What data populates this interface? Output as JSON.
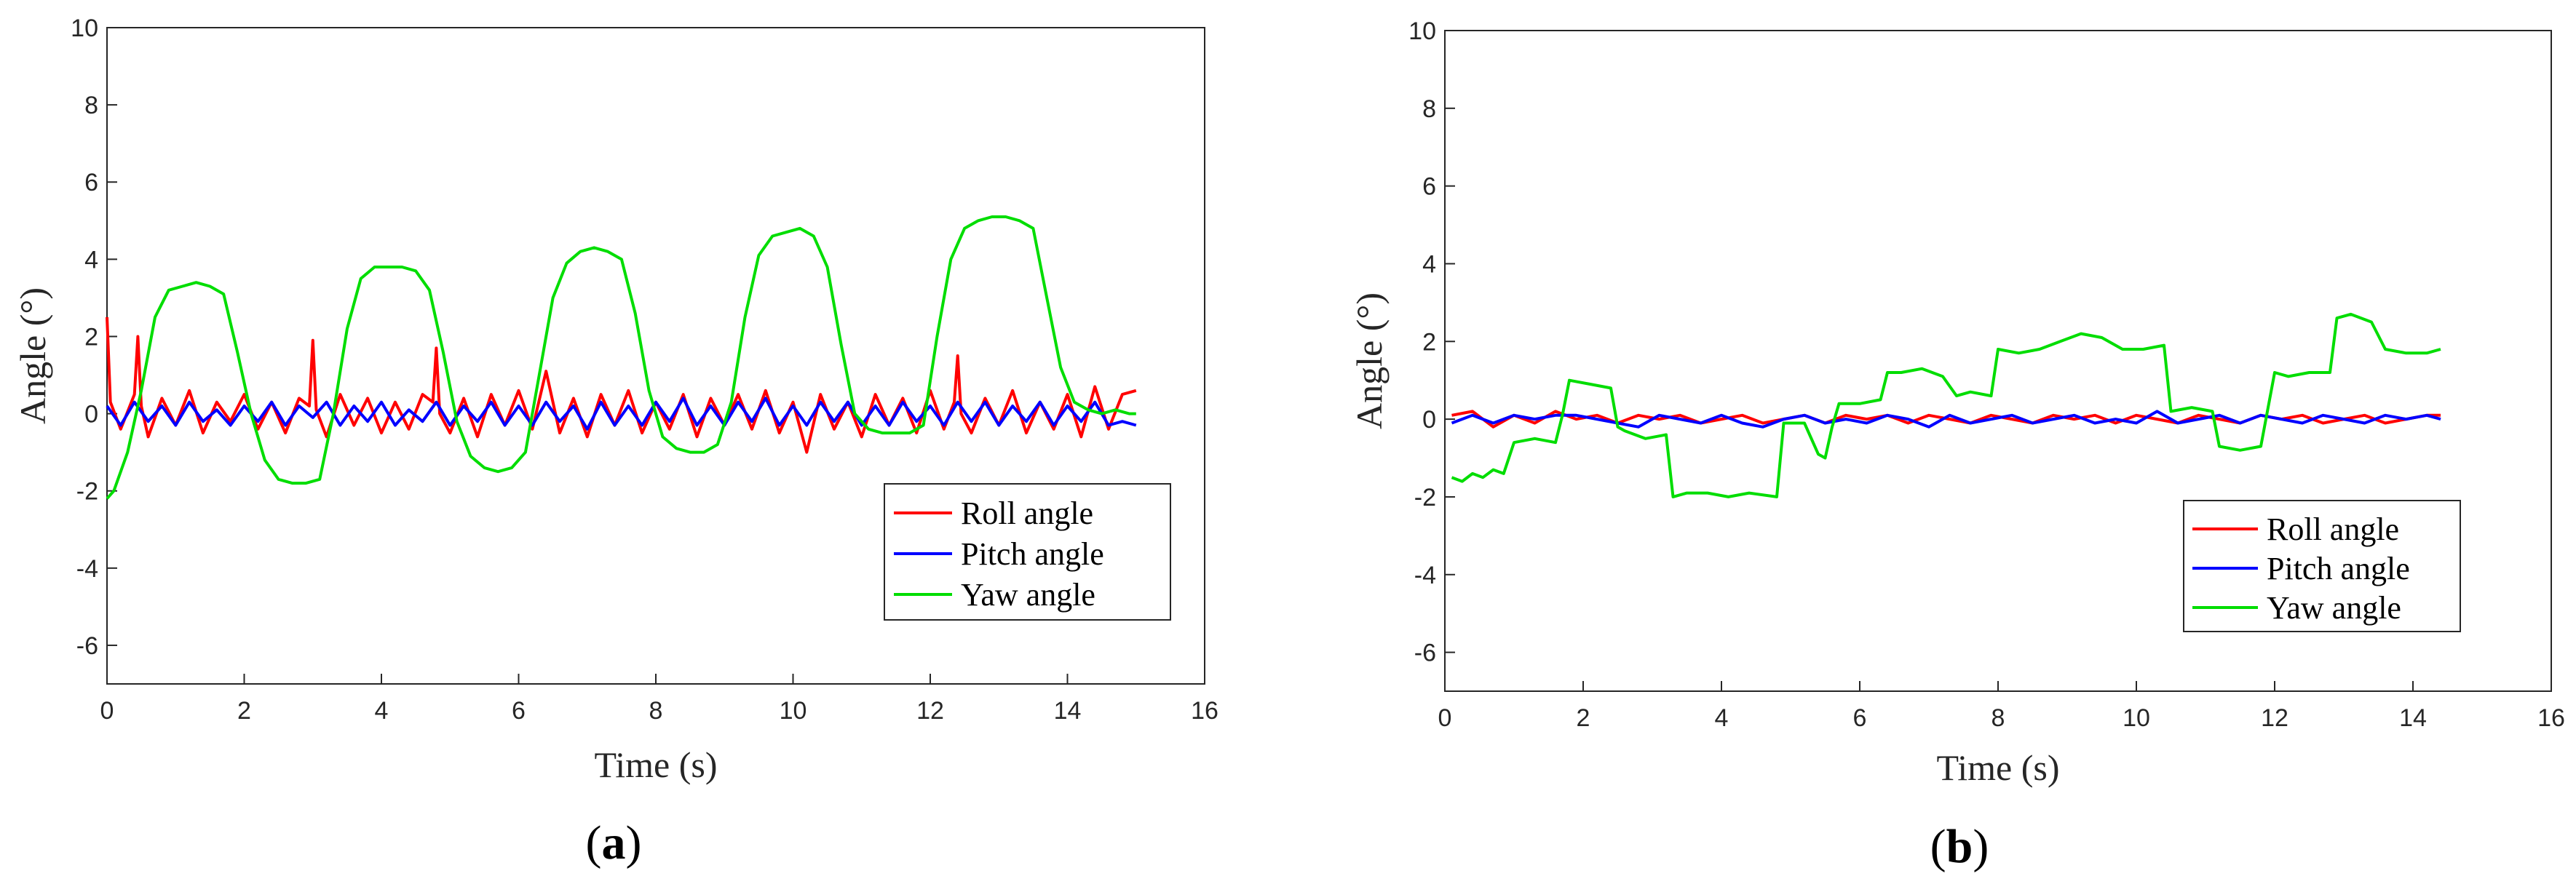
{
  "figure_labels": {
    "a": {
      "open": "(",
      "letter": "a",
      "close": ")"
    },
    "b": {
      "open": "(",
      "letter": "b",
      "close": ")"
    }
  },
  "colors": {
    "roll": "#ff0000",
    "pitch": "#0000ff",
    "yaw": "#00dd00",
    "axis": "#262626"
  },
  "chart_data": [
    {
      "type": "line",
      "panel": "a",
      "xlabel": "Time (s)",
      "ylabel": "Angle (°)",
      "xlim": [
        0,
        16
      ],
      "ylim": [
        -7,
        10
      ],
      "xticks": [
        0,
        2,
        4,
        6,
        8,
        10,
        12,
        14,
        16
      ],
      "yticks": [
        -6,
        -4,
        -2,
        0,
        2,
        4,
        6,
        8,
        10
      ],
      "legend": {
        "position": "lower-right",
        "entries": [
          "Roll angle",
          "Pitch angle",
          "Yaw angle"
        ]
      },
      "series": [
        {
          "name": "Roll angle",
          "color": "#ff0000",
          "x": [
            0,
            0.05,
            0.2,
            0.4,
            0.45,
            0.5,
            0.6,
            0.8,
            1.0,
            1.2,
            1.4,
            1.6,
            1.8,
            2.0,
            2.2,
            2.4,
            2.6,
            2.8,
            2.95,
            3.0,
            3.05,
            3.2,
            3.4,
            3.6,
            3.8,
            4.0,
            4.2,
            4.4,
            4.6,
            4.75,
            4.8,
            4.85,
            5.0,
            5.2,
            5.4,
            5.6,
            5.8,
            6.0,
            6.2,
            6.4,
            6.6,
            6.8,
            7.0,
            7.2,
            7.4,
            7.6,
            7.8,
            8.0,
            8.2,
            8.4,
            8.6,
            8.8,
            9.0,
            9.2,
            9.4,
            9.6,
            9.8,
            10.0,
            10.2,
            10.4,
            10.6,
            10.8,
            11.0,
            11.2,
            11.4,
            11.6,
            11.8,
            12.0,
            12.2,
            12.35,
            12.4,
            12.45,
            12.6,
            12.8,
            13.0,
            13.2,
            13.4,
            13.6,
            13.8,
            14.0,
            14.2,
            14.4,
            14.6,
            14.8,
            15.0
          ],
          "values": [
            2.5,
            0.3,
            -0.4,
            0.5,
            2.0,
            0.2,
            -0.6,
            0.4,
            -0.3,
            0.6,
            -0.5,
            0.3,
            -0.2,
            0.5,
            -0.4,
            0.3,
            -0.5,
            0.4,
            0.2,
            1.9,
            0.1,
            -0.6,
            0.5,
            -0.3,
            0.4,
            -0.5,
            0.3,
            -0.4,
            0.5,
            0.3,
            1.7,
            0.0,
            -0.5,
            0.4,
            -0.6,
            0.5,
            -0.3,
            0.6,
            -0.4,
            1.1,
            -0.5,
            0.4,
            -0.6,
            0.5,
            -0.3,
            0.6,
            -0.5,
            0.3,
            -0.4,
            0.5,
            -0.6,
            0.4,
            -0.3,
            0.5,
            -0.4,
            0.6,
            -0.5,
            0.3,
            -1.0,
            0.5,
            -0.4,
            0.3,
            -0.6,
            0.5,
            -0.3,
            0.4,
            -0.5,
            0.6,
            -0.4,
            0.3,
            1.5,
            0.0,
            -0.5,
            0.4,
            -0.3,
            0.6,
            -0.5,
            0.3,
            -0.4,
            0.5,
            -0.6,
            0.7,
            -0.4,
            0.5,
            0.6
          ]
        },
        {
          "name": "Pitch angle",
          "color": "#0000ff",
          "x": [
            0,
            0.2,
            0.4,
            0.6,
            0.8,
            1.0,
            1.2,
            1.4,
            1.6,
            1.8,
            2.0,
            2.2,
            2.4,
            2.6,
            2.8,
            3.0,
            3.2,
            3.4,
            3.6,
            3.8,
            4.0,
            4.2,
            4.4,
            4.6,
            4.8,
            5.0,
            5.2,
            5.4,
            5.6,
            5.8,
            6.0,
            6.2,
            6.4,
            6.6,
            6.8,
            7.0,
            7.2,
            7.4,
            7.6,
            7.8,
            8.0,
            8.2,
            8.4,
            8.6,
            8.8,
            9.0,
            9.2,
            9.4,
            9.6,
            9.8,
            10.0,
            10.2,
            10.4,
            10.6,
            10.8,
            11.0,
            11.2,
            11.4,
            11.6,
            11.8,
            12.0,
            12.2,
            12.4,
            12.6,
            12.8,
            13.0,
            13.2,
            13.4,
            13.6,
            13.8,
            14.0,
            14.2,
            14.4,
            14.6,
            14.8,
            15.0
          ],
          "values": [
            0.2,
            -0.3,
            0.3,
            -0.2,
            0.2,
            -0.3,
            0.3,
            -0.2,
            0.1,
            -0.3,
            0.2,
            -0.2,
            0.3,
            -0.3,
            0.2,
            -0.1,
            0.3,
            -0.3,
            0.2,
            -0.2,
            0.3,
            -0.3,
            0.1,
            -0.2,
            0.3,
            -0.3,
            0.2,
            -0.2,
            0.3,
            -0.3,
            0.2,
            -0.3,
            0.3,
            -0.2,
            0.2,
            -0.4,
            0.3,
            -0.3,
            0.2,
            -0.3,
            0.3,
            -0.2,
            0.4,
            -0.3,
            0.2,
            -0.3,
            0.3,
            -0.2,
            0.4,
            -0.3,
            0.2,
            -0.3,
            0.3,
            -0.2,
            0.3,
            -0.3,
            0.2,
            -0.3,
            0.3,
            -0.2,
            0.2,
            -0.3,
            0.3,
            -0.2,
            0.3,
            -0.3,
            0.2,
            -0.2,
            0.3,
            -0.3,
            0.2,
            -0.2,
            0.3,
            -0.3,
            -0.2,
            -0.3
          ]
        },
        {
          "name": "Yaw angle",
          "color": "#00dd00",
          "x": [
            0,
            0.1,
            0.3,
            0.5,
            0.7,
            0.9,
            1.1,
            1.3,
            1.5,
            1.7,
            1.9,
            2.1,
            2.3,
            2.5,
            2.7,
            2.9,
            3.1,
            3.3,
            3.5,
            3.7,
            3.9,
            4.1,
            4.3,
            4.5,
            4.7,
            4.9,
            5.1,
            5.3,
            5.5,
            5.7,
            5.9,
            6.1,
            6.3,
            6.5,
            6.7,
            6.9,
            7.1,
            7.3,
            7.5,
            7.7,
            7.9,
            8.1,
            8.3,
            8.5,
            8.7,
            8.9,
            9.1,
            9.3,
            9.5,
            9.7,
            9.9,
            10.1,
            10.3,
            10.5,
            10.7,
            10.9,
            11.1,
            11.3,
            11.5,
            11.7,
            11.9,
            12.1,
            12.3,
            12.5,
            12.7,
            12.9,
            13.1,
            13.3,
            13.5,
            13.7,
            13.9,
            14.1,
            14.3,
            14.5,
            14.7,
            14.9,
            15.0
          ],
          "values": [
            -2.2,
            -2.0,
            -1.0,
            0.6,
            2.5,
            3.2,
            3.3,
            3.4,
            3.3,
            3.1,
            1.6,
            0.0,
            -1.2,
            -1.7,
            -1.8,
            -1.8,
            -1.7,
            0.0,
            2.2,
            3.5,
            3.8,
            3.8,
            3.8,
            3.7,
            3.2,
            1.6,
            -0.2,
            -1.1,
            -1.4,
            -1.5,
            -1.4,
            -1.0,
            1.0,
            3.0,
            3.9,
            4.2,
            4.3,
            4.2,
            4.0,
            2.6,
            0.6,
            -0.6,
            -0.9,
            -1.0,
            -1.0,
            -0.8,
            0.3,
            2.5,
            4.1,
            4.6,
            4.7,
            4.8,
            4.6,
            3.8,
            1.8,
            0.0,
            -0.4,
            -0.5,
            -0.5,
            -0.5,
            -0.3,
            2.0,
            4.0,
            4.8,
            5.0,
            5.1,
            5.1,
            5.0,
            4.8,
            3.0,
            1.2,
            0.3,
            0.1,
            0.0,
            0.1,
            0.0,
            0.0
          ]
        }
      ]
    },
    {
      "type": "line",
      "panel": "b",
      "xlabel": "Time (s)",
      "ylabel": "Angle (°)",
      "xlim": [
        0,
        16
      ],
      "ylim": [
        -7,
        10
      ],
      "xticks": [
        0,
        2,
        4,
        6,
        8,
        10,
        12,
        14,
        16
      ],
      "yticks": [
        -6,
        -4,
        -2,
        0,
        2,
        4,
        6,
        8,
        10
      ],
      "legend": {
        "position": "lower-right",
        "entries": [
          "Roll angle",
          "Pitch angle",
          "Yaw angle"
        ]
      },
      "series": [
        {
          "name": "Roll angle",
          "color": "#ff0000",
          "x": [
            0.1,
            0.4,
            0.7,
            1.0,
            1.3,
            1.6,
            1.9,
            2.2,
            2.5,
            2.8,
            3.1,
            3.4,
            3.7,
            4.0,
            4.3,
            4.6,
            4.9,
            5.2,
            5.5,
            5.8,
            6.1,
            6.4,
            6.7,
            7.0,
            7.3,
            7.6,
            7.9,
            8.2,
            8.5,
            8.8,
            9.1,
            9.4,
            9.7,
            10.0,
            10.3,
            10.6,
            10.9,
            11.2,
            11.5,
            11.8,
            12.1,
            12.4,
            12.7,
            13.0,
            13.3,
            13.6,
            13.9,
            14.2,
            14.4
          ],
          "values": [
            0.1,
            0.2,
            -0.2,
            0.1,
            -0.1,
            0.2,
            0.0,
            0.1,
            -0.1,
            0.1,
            0.0,
            0.1,
            -0.1,
            0.0,
            0.1,
            -0.1,
            0.0,
            0.1,
            -0.1,
            0.1,
            0.0,
            0.1,
            -0.1,
            0.1,
            0.0,
            -0.1,
            0.1,
            0.0,
            -0.1,
            0.1,
            0.0,
            0.1,
            -0.1,
            0.1,
            0.0,
            -0.1,
            0.1,
            0.0,
            -0.1,
            0.1,
            0.0,
            0.1,
            -0.1,
            0.0,
            0.1,
            -0.1,
            0.0,
            0.1,
            0.1
          ]
        },
        {
          "name": "Pitch angle",
          "color": "#0000ff",
          "x": [
            0.1,
            0.4,
            0.7,
            1.0,
            1.3,
            1.6,
            1.9,
            2.2,
            2.5,
            2.8,
            3.1,
            3.4,
            3.7,
            4.0,
            4.3,
            4.6,
            4.9,
            5.2,
            5.5,
            5.8,
            6.1,
            6.4,
            6.7,
            7.0,
            7.3,
            7.6,
            7.9,
            8.2,
            8.5,
            8.8,
            9.1,
            9.4,
            9.7,
            10.0,
            10.3,
            10.6,
            10.9,
            11.2,
            11.5,
            11.8,
            12.1,
            12.4,
            12.7,
            13.0,
            13.3,
            13.6,
            13.9,
            14.2,
            14.4
          ],
          "values": [
            -0.1,
            0.1,
            -0.1,
            0.1,
            0.0,
            0.1,
            0.1,
            0.0,
            -0.1,
            -0.2,
            0.1,
            0.0,
            -0.1,
            0.1,
            -0.1,
            -0.2,
            0.0,
            0.1,
            -0.1,
            0.0,
            -0.1,
            0.1,
            0.0,
            -0.2,
            0.1,
            -0.1,
            0.0,
            0.1,
            -0.1,
            0.0,
            0.1,
            -0.1,
            0.0,
            -0.1,
            0.2,
            -0.1,
            0.0,
            0.1,
            -0.1,
            0.1,
            0.0,
            -0.1,
            0.1,
            0.0,
            -0.1,
            0.1,
            0.0,
            0.1,
            0.0
          ]
        },
        {
          "name": "Yaw angle",
          "color": "#00dd00",
          "x": [
            0.1,
            0.25,
            0.4,
            0.55,
            0.7,
            0.85,
            1.0,
            1.3,
            1.6,
            1.7,
            1.8,
            2.1,
            2.4,
            2.5,
            2.6,
            2.9,
            3.2,
            3.3,
            3.5,
            3.8,
            4.1,
            4.4,
            4.8,
            4.9,
            5.2,
            5.4,
            5.5,
            5.6,
            5.7,
            6.0,
            6.3,
            6.4,
            6.6,
            6.9,
            7.2,
            7.4,
            7.6,
            7.9,
            8.0,
            8.3,
            8.6,
            8.9,
            9.2,
            9.5,
            9.8,
            10.1,
            10.4,
            10.5,
            10.8,
            11.1,
            11.2,
            11.5,
            11.8,
            12.0,
            12.2,
            12.5,
            12.8,
            12.9,
            13.1,
            13.4,
            13.6,
            13.9,
            14.2,
            14.4
          ],
          "values": [
            -1.5,
            -1.6,
            -1.4,
            -1.5,
            -1.3,
            -1.4,
            -0.6,
            -0.5,
            -0.6,
            0.1,
            1.0,
            0.9,
            0.8,
            -0.2,
            -0.3,
            -0.5,
            -0.4,
            -2.0,
            -1.9,
            -1.9,
            -2.0,
            -1.9,
            -2.0,
            -0.1,
            -0.1,
            -0.9,
            -1.0,
            -0.2,
            0.4,
            0.4,
            0.5,
            1.2,
            1.2,
            1.3,
            1.1,
            0.6,
            0.7,
            0.6,
            1.8,
            1.7,
            1.8,
            2.0,
            2.2,
            2.1,
            1.8,
            1.8,
            1.9,
            0.2,
            0.3,
            0.2,
            -0.7,
            -0.8,
            -0.7,
            1.2,
            1.1,
            1.2,
            1.2,
            2.6,
            2.7,
            2.5,
            1.8,
            1.7,
            1.7,
            1.8
          ]
        }
      ]
    }
  ]
}
